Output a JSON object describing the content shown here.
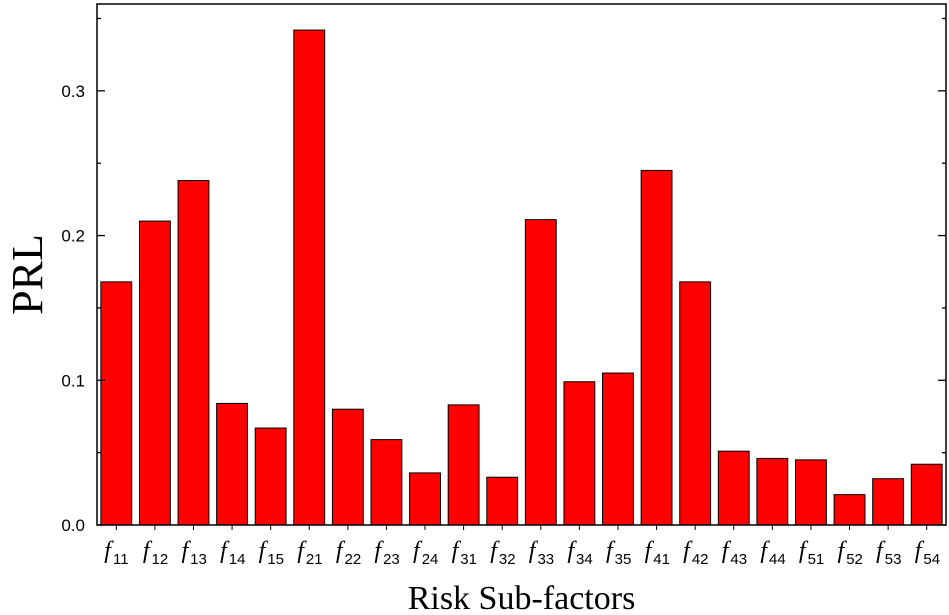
{
  "chart_data": {
    "type": "bar",
    "xlabel": "Risk Sub-factors",
    "ylabel": "PRL",
    "ylim": [
      0,
      0.36
    ],
    "yticks": [
      "0.0",
      "0.1",
      "0.2",
      "0.3"
    ],
    "grid": false,
    "bar_color": "#ff0000",
    "categories": [
      {
        "base": "f",
        "sub": "11"
      },
      {
        "base": "f",
        "sub": "12"
      },
      {
        "base": "f",
        "sub": "13"
      },
      {
        "base": "f",
        "sub": "14"
      },
      {
        "base": "f",
        "sub": "15"
      },
      {
        "base": "f",
        "sub": "21"
      },
      {
        "base": "f",
        "sub": "22"
      },
      {
        "base": "f",
        "sub": "23"
      },
      {
        "base": "f",
        "sub": "24"
      },
      {
        "base": "f",
        "sub": "31"
      },
      {
        "base": "f",
        "sub": "32"
      },
      {
        "base": "f",
        "sub": "33"
      },
      {
        "base": "f",
        "sub": "34"
      },
      {
        "base": "f",
        "sub": "35"
      },
      {
        "base": "f",
        "sub": "41"
      },
      {
        "base": "f",
        "sub": "42"
      },
      {
        "base": "f",
        "sub": "43"
      },
      {
        "base": "f",
        "sub": "44"
      },
      {
        "base": "f",
        "sub": "51"
      },
      {
        "base": "f",
        "sub": "52"
      },
      {
        "base": "f",
        "sub": "53"
      },
      {
        "base": "f",
        "sub": "54"
      }
    ],
    "values": [
      0.168,
      0.21,
      0.238,
      0.084,
      0.067,
      0.342,
      0.08,
      0.059,
      0.036,
      0.083,
      0.033,
      0.211,
      0.099,
      0.105,
      0.245,
      0.168,
      0.051,
      0.046,
      0.045,
      0.021,
      0.032,
      0.042
    ]
  }
}
